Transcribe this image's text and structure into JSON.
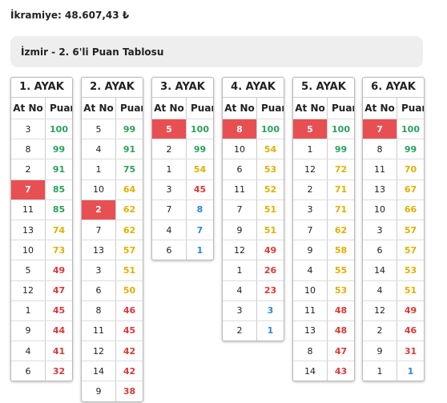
{
  "header": {
    "prize": "İkramiye: 48.607,43 ₺"
  },
  "panel": {
    "title": "İzmir - 2. 6'li Puan Tablosu"
  },
  "legs": [
    {
      "title": "1. AYAK",
      "columns": [
        "At No",
        "Puan"
      ],
      "rows": [
        {
          "horse": "3",
          "score": 100,
          "tone": "green"
        },
        {
          "horse": "8",
          "score": 99,
          "tone": "green"
        },
        {
          "horse": "2",
          "score": 91,
          "tone": "green"
        },
        {
          "horse": "7",
          "score": 85,
          "tone": "green",
          "highlight": true
        },
        {
          "horse": "11",
          "score": 85,
          "tone": "green"
        },
        {
          "horse": "13",
          "score": 74,
          "tone": "yellow"
        },
        {
          "horse": "10",
          "score": 73,
          "tone": "yellow"
        },
        {
          "horse": "5",
          "score": 49,
          "tone": "red"
        },
        {
          "horse": "12",
          "score": 47,
          "tone": "red"
        },
        {
          "horse": "1",
          "score": 45,
          "tone": "red"
        },
        {
          "horse": "9",
          "score": 44,
          "tone": "red"
        },
        {
          "horse": "4",
          "score": 41,
          "tone": "red"
        },
        {
          "horse": "6",
          "score": 32,
          "tone": "red"
        }
      ]
    },
    {
      "title": "2. AYAK",
      "columns": [
        "At No",
        "Puan"
      ],
      "rows": [
        {
          "horse": "5",
          "score": 99,
          "tone": "green"
        },
        {
          "horse": "4",
          "score": 91,
          "tone": "green"
        },
        {
          "horse": "1",
          "score": 75,
          "tone": "green"
        },
        {
          "horse": "10",
          "score": 64,
          "tone": "yellow"
        },
        {
          "horse": "2",
          "score": 62,
          "tone": "yellow",
          "highlight": true
        },
        {
          "horse": "7",
          "score": 62,
          "tone": "yellow"
        },
        {
          "horse": "13",
          "score": 57,
          "tone": "yellow"
        },
        {
          "horse": "3",
          "score": 51,
          "tone": "yellow"
        },
        {
          "horse": "6",
          "score": 50,
          "tone": "yellow"
        },
        {
          "horse": "8",
          "score": 46,
          "tone": "red"
        },
        {
          "horse": "11",
          "score": 45,
          "tone": "red"
        },
        {
          "horse": "12",
          "score": 42,
          "tone": "red"
        },
        {
          "horse": "14",
          "score": 42,
          "tone": "red"
        },
        {
          "horse": "9",
          "score": 38,
          "tone": "red"
        }
      ]
    },
    {
      "title": "3. AYAK",
      "columns": [
        "At No",
        "Puan"
      ],
      "rows": [
        {
          "horse": "5",
          "score": 100,
          "tone": "green",
          "highlight": true
        },
        {
          "horse": "2",
          "score": 99,
          "tone": "green"
        },
        {
          "horse": "1",
          "score": 54,
          "tone": "yellow"
        },
        {
          "horse": "3",
          "score": 45,
          "tone": "red"
        },
        {
          "horse": "7",
          "score": 8,
          "tone": "blue"
        },
        {
          "horse": "4",
          "score": 7,
          "tone": "blue"
        },
        {
          "horse": "6",
          "score": 1,
          "tone": "blue"
        }
      ]
    },
    {
      "title": "4. AYAK",
      "columns": [
        "At No",
        "Puan"
      ],
      "rows": [
        {
          "horse": "8",
          "score": 100,
          "tone": "green",
          "highlight": true
        },
        {
          "horse": "10",
          "score": 54,
          "tone": "yellow"
        },
        {
          "horse": "6",
          "score": 53,
          "tone": "yellow"
        },
        {
          "horse": "11",
          "score": 52,
          "tone": "yellow"
        },
        {
          "horse": "7",
          "score": 51,
          "tone": "yellow"
        },
        {
          "horse": "9",
          "score": 51,
          "tone": "yellow"
        },
        {
          "horse": "12",
          "score": 49,
          "tone": "red"
        },
        {
          "horse": "1",
          "score": 26,
          "tone": "red"
        },
        {
          "horse": "4",
          "score": 23,
          "tone": "red"
        },
        {
          "horse": "3",
          "score": 3,
          "tone": "blue"
        },
        {
          "horse": "2",
          "score": 1,
          "tone": "blue"
        }
      ]
    },
    {
      "title": "5. AYAK",
      "columns": [
        "At No",
        "Puan"
      ],
      "rows": [
        {
          "horse": "5",
          "score": 100,
          "tone": "green",
          "highlight": true
        },
        {
          "horse": "1",
          "score": 99,
          "tone": "green"
        },
        {
          "horse": "12",
          "score": 72,
          "tone": "yellow"
        },
        {
          "horse": "2",
          "score": 71,
          "tone": "yellow"
        },
        {
          "horse": "3",
          "score": 71,
          "tone": "yellow"
        },
        {
          "horse": "7",
          "score": 62,
          "tone": "yellow"
        },
        {
          "horse": "9",
          "score": 58,
          "tone": "yellow"
        },
        {
          "horse": "4",
          "score": 55,
          "tone": "yellow"
        },
        {
          "horse": "10",
          "score": 53,
          "tone": "yellow"
        },
        {
          "horse": "11",
          "score": 48,
          "tone": "red"
        },
        {
          "horse": "13",
          "score": 48,
          "tone": "red"
        },
        {
          "horse": "8",
          "score": 47,
          "tone": "red"
        },
        {
          "horse": "14",
          "score": 43,
          "tone": "red"
        }
      ]
    },
    {
      "title": "6. AYAK",
      "columns": [
        "At No",
        "Puan"
      ],
      "rows": [
        {
          "horse": "7",
          "score": 100,
          "tone": "green",
          "highlight": true
        },
        {
          "horse": "8",
          "score": 99,
          "tone": "green"
        },
        {
          "horse": "11",
          "score": 70,
          "tone": "yellow"
        },
        {
          "horse": "13",
          "score": 67,
          "tone": "yellow"
        },
        {
          "horse": "10",
          "score": 66,
          "tone": "yellow"
        },
        {
          "horse": "3",
          "score": 57,
          "tone": "yellow"
        },
        {
          "horse": "6",
          "score": 57,
          "tone": "yellow"
        },
        {
          "horse": "14",
          "score": 53,
          "tone": "yellow"
        },
        {
          "horse": "4",
          "score": 51,
          "tone": "yellow"
        },
        {
          "horse": "12",
          "score": 49,
          "tone": "red"
        },
        {
          "horse": "2",
          "score": 46,
          "tone": "red"
        },
        {
          "horse": "9",
          "score": 31,
          "tone": "red"
        },
        {
          "horse": "1",
          "score": 1,
          "tone": "blue"
        }
      ]
    }
  ]
}
